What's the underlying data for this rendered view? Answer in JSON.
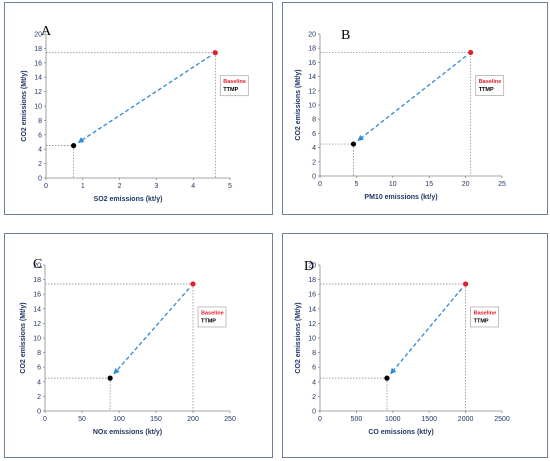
{
  "colors": {
    "baseline": "#e0202a",
    "ttmp": "#000000",
    "arrow": "#2e8bd8",
    "tick": "#1f3864"
  },
  "chart_data": [
    {
      "panel": "A",
      "type": "scatter",
      "xlabel": "SO2 emissions (kt/y)",
      "ylabel": "CO2 emissions (Mt/y)",
      "xlim": [
        0,
        5
      ],
      "ylim": [
        0,
        20
      ],
      "xticks": [
        0,
        1,
        2,
        3,
        4,
        5
      ],
      "yticks": [
        0,
        2,
        4,
        6,
        8,
        10,
        12,
        14,
        16,
        18,
        20
      ],
      "series": [
        {
          "name": "Baseline",
          "x": 4.6,
          "y": 17.4
        },
        {
          "name": "TTMP",
          "x": 0.75,
          "y": 4.5
        }
      ],
      "legend": "right",
      "annotation": "dashed arrow from Baseline to TTMP"
    },
    {
      "panel": "B",
      "type": "scatter",
      "xlabel": "PM10 emissions (kt/y)",
      "ylabel": "CO2 emissions (Mt/y)",
      "xlim": [
        0,
        25
      ],
      "ylim": [
        0,
        20
      ],
      "xticks": [
        0,
        5,
        10,
        15,
        20,
        25
      ],
      "yticks": [
        0,
        2,
        4,
        6,
        8,
        10,
        12,
        14,
        16,
        18,
        20
      ],
      "series": [
        {
          "name": "Baseline",
          "x": 20.7,
          "y": 17.4
        },
        {
          "name": "TTMP",
          "x": 4.6,
          "y": 4.5
        }
      ],
      "legend": "right",
      "annotation": "dashed arrow from Baseline to TTMP"
    },
    {
      "panel": "C",
      "type": "scatter",
      "xlabel": "NOx emissions (kt/y)",
      "ylabel": "CO2 emissions (Mt/y)",
      "xlim": [
        0,
        250
      ],
      "ylim": [
        0,
        20
      ],
      "xticks": [
        0,
        50,
        100,
        150,
        200,
        250
      ],
      "yticks": [
        0,
        2,
        4,
        6,
        8,
        10,
        12,
        14,
        16,
        18,
        20
      ],
      "series": [
        {
          "name": "Baseline",
          "x": 200,
          "y": 17.4
        },
        {
          "name": "TTMP",
          "x": 88,
          "y": 4.5
        }
      ],
      "legend": "right",
      "annotation": "dashed arrow from Baseline to TTMP"
    },
    {
      "panel": "D",
      "type": "scatter",
      "xlabel": "CO emissions (kt/y)",
      "ylabel": "CO2 emissions (Mt/y)",
      "xlim": [
        0,
        2500
      ],
      "ylim": [
        0,
        20
      ],
      "xticks": [
        0,
        500,
        1000,
        1500,
        2000,
        2500
      ],
      "yticks": [
        0,
        2,
        4,
        6,
        8,
        10,
        12,
        14,
        16,
        18,
        20
      ],
      "series": [
        {
          "name": "Baseline",
          "x": 2000,
          "y": 17.4
        },
        {
          "name": "TTMP",
          "x": 920,
          "y": 4.5
        }
      ],
      "legend": "right",
      "annotation": "dashed arrow from Baseline to TTMP"
    }
  ]
}
